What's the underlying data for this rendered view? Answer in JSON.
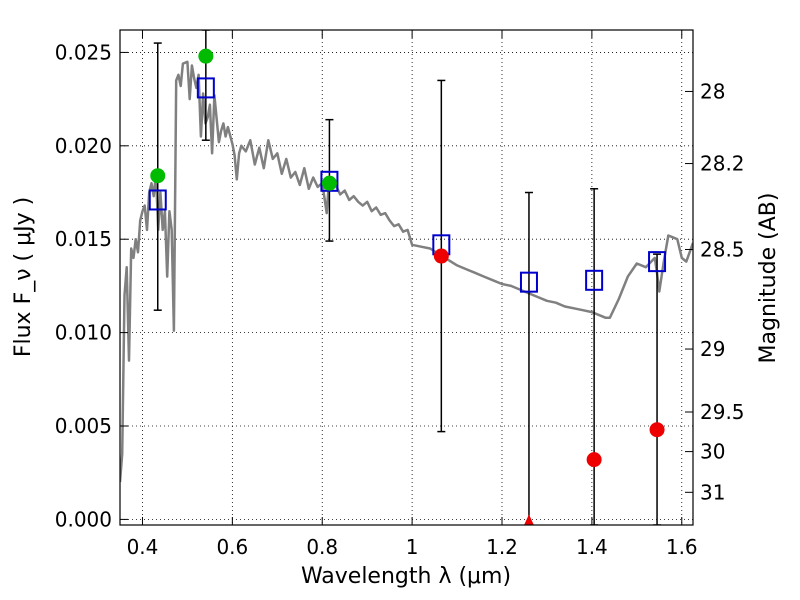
{
  "chart_data": {
    "type": "scatter",
    "xlabel": "Wavelength  λ (μm)",
    "ylabel": "Flux  F_ν  ( μJy )",
    "ylabel_right": "Magnitude (AB)",
    "xlim": [
      0.35,
      1.625
    ],
    "ylim": [
      -0.0003,
      0.0262
    ],
    "x_ticks": [
      0.4,
      0.6,
      0.8,
      1.0,
      1.2,
      1.4,
      1.6
    ],
    "x_tick_labels": [
      "0.4",
      "0.6",
      "0.8",
      "1",
      "1.2",
      "1.4",
      "1.6"
    ],
    "y_ticks": [
      0.0,
      0.005,
      0.01,
      0.015,
      0.02,
      0.025
    ],
    "y_tick_labels": [
      "0.000",
      "0.005",
      "0.010",
      "0.015",
      "0.020",
      "0.025"
    ],
    "right_ticks": [
      {
        "label": "28",
        "flux": 0.02291
      },
      {
        "label": "28.2",
        "flux": 0.01905
      },
      {
        "label": "28.5",
        "flux": 0.01445
      },
      {
        "label": "29",
        "flux": 0.00912
      },
      {
        "label": "29.5",
        "flux": 0.00575
      },
      {
        "label": "30",
        "flux": 0.00363
      },
      {
        "label": "31",
        "flux": 0.00145
      }
    ],
    "grid": true,
    "series": [
      {
        "kind": "line",
        "color": "#808080",
        "x": [
          0.35,
          0.355,
          0.36,
          0.365,
          0.37,
          0.375,
          0.38,
          0.385,
          0.39,
          0.395,
          0.4,
          0.405,
          0.41,
          0.415,
          0.42,
          0.425,
          0.43,
          0.435,
          0.44,
          0.445,
          0.45,
          0.455,
          0.46,
          0.465,
          0.47,
          0.475,
          0.48,
          0.485,
          0.49,
          0.5,
          0.505,
          0.51,
          0.515,
          0.52,
          0.525,
          0.53,
          0.535,
          0.54,
          0.545,
          0.55,
          0.555,
          0.56,
          0.57,
          0.575,
          0.58,
          0.585,
          0.59,
          0.6,
          0.605,
          0.61,
          0.615,
          0.62,
          0.63,
          0.64,
          0.65,
          0.66,
          0.67,
          0.68,
          0.69,
          0.7,
          0.71,
          0.72,
          0.73,
          0.74,
          0.75,
          0.76,
          0.77,
          0.78,
          0.79,
          0.8,
          0.805,
          0.81,
          0.815,
          0.82,
          0.83,
          0.84,
          0.85,
          0.86,
          0.87,
          0.88,
          0.89,
          0.9,
          0.91,
          0.92,
          0.93,
          0.94,
          0.95,
          0.96,
          0.97,
          0.98,
          0.99,
          1.0,
          1.02,
          1.04,
          1.06,
          1.08,
          1.1,
          1.12,
          1.14,
          1.16,
          1.18,
          1.2,
          1.22,
          1.24,
          1.26,
          1.28,
          1.3,
          1.32,
          1.34,
          1.36,
          1.38,
          1.4,
          1.42,
          1.43,
          1.44,
          1.46,
          1.48,
          1.5,
          1.52,
          1.54,
          1.545,
          1.55,
          1.56,
          1.57,
          1.58,
          1.59,
          1.6,
          1.61,
          1.625
        ],
        "y": [
          0.002,
          0.0035,
          0.012,
          0.0135,
          0.0085,
          0.0145,
          0.014,
          0.015,
          0.0143,
          0.016,
          0.0165,
          0.0168,
          0.0155,
          0.0175,
          0.018,
          0.0173,
          0.0185,
          0.0155,
          0.0175,
          0.0155,
          0.0165,
          0.013,
          0.0165,
          0.0155,
          0.0101,
          0.0235,
          0.0238,
          0.0232,
          0.0244,
          0.0245,
          0.0225,
          0.0243,
          0.0236,
          0.0231,
          0.0238,
          0.0205,
          0.0228,
          0.0212,
          0.0215,
          0.0222,
          0.0196,
          0.0227,
          0.0202,
          0.0208,
          0.0212,
          0.0205,
          0.021,
          0.0201,
          0.0195,
          0.0182,
          0.0196,
          0.02,
          0.0197,
          0.0203,
          0.019,
          0.0199,
          0.0188,
          0.0203,
          0.0193,
          0.0196,
          0.0185,
          0.0193,
          0.0183,
          0.0186,
          0.0179,
          0.0188,
          0.0177,
          0.0183,
          0.0178,
          0.018,
          0.0172,
          0.0164,
          0.0181,
          0.0182,
          0.0179,
          0.0174,
          0.0176,
          0.0171,
          0.0173,
          0.017,
          0.0168,
          0.017,
          0.0165,
          0.0167,
          0.0163,
          0.0164,
          0.016,
          0.0157,
          0.0158,
          0.0154,
          0.0155,
          0.0147,
          0.0146,
          0.0145,
          0.0142,
          0.0139,
          0.0136,
          0.0134,
          0.0132,
          0.013,
          0.0128,
          0.0126,
          0.0125,
          0.0123,
          0.0121,
          0.0119,
          0.0117,
          0.0116,
          0.0114,
          0.0113,
          0.0112,
          0.0111,
          0.0109,
          0.0108,
          0.0108,
          0.0118,
          0.013,
          0.0137,
          0.0135,
          0.014,
          0.0132,
          0.0122,
          0.0138,
          0.0152,
          0.0151,
          0.015,
          0.014,
          0.0138,
          0.0148
        ]
      },
      {
        "kind": "errorbar",
        "color": "#000000",
        "x": [
          0.434,
          0.541,
          0.816,
          1.065,
          1.26,
          1.405,
          1.545
        ],
        "low": [
          0.0112,
          0.0203,
          0.0149,
          0.0047,
          -0.0003,
          -0.0003,
          -0.0003
        ],
        "high": [
          0.0255,
          0.0262,
          0.0214,
          0.0235,
          0.0175,
          0.0177,
          0.0142
        ]
      },
      {
        "kind": "square",
        "color": "#0000cc",
        "x": [
          0.434,
          0.541,
          0.816,
          1.065,
          1.26,
          1.405,
          1.545
        ],
        "y": [
          0.0171,
          0.0231,
          0.0181,
          0.0147,
          0.0127,
          0.0128,
          0.0138
        ]
      },
      {
        "kind": "circle",
        "color": "#00bb00",
        "x": [
          0.434,
          0.541,
          0.816
        ],
        "y": [
          0.0184,
          0.0248,
          0.018
        ]
      },
      {
        "kind": "circle",
        "color": "#ee0000",
        "x": [
          1.065,
          1.405,
          1.545
        ],
        "y": [
          0.0141,
          0.0032,
          0.0048
        ]
      },
      {
        "kind": "triangle",
        "color": "#ee0000",
        "x": [
          1.26
        ],
        "y": [
          0.0
        ]
      }
    ]
  }
}
